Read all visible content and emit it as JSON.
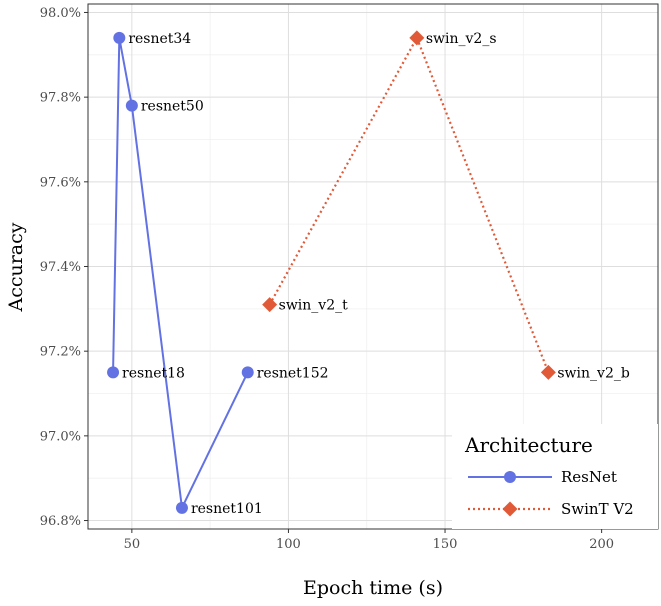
{
  "chart_data": {
    "type": "line",
    "title": "",
    "xlabel": "Epoch time (s)",
    "ylabel": "Accuracy",
    "xlim": [
      36,
      218
    ],
    "ylim": [
      96.78,
      98.02
    ],
    "x_ticks": [
      50,
      100,
      150,
      200
    ],
    "x_tick_labels": [
      "50",
      "100",
      "150",
      "200"
    ],
    "y_ticks": [
      96.8,
      97.0,
      97.2,
      97.4,
      97.6,
      97.8,
      98.0
    ],
    "y_tick_labels": [
      "96.8%",
      "97.0%",
      "97.2%",
      "97.4%",
      "97.6%",
      "97.8%",
      "98.0%"
    ],
    "grid": true,
    "legend": {
      "title": "Architecture",
      "position": "bottom-right"
    },
    "series": [
      {
        "name": "ResNet",
        "color": "#6272e3",
        "line_style": "solid",
        "marker": "circle",
        "points": [
          {
            "label": "resnet18",
            "x": 44,
            "y": 97.15
          },
          {
            "label": "resnet34",
            "x": 46,
            "y": 97.94
          },
          {
            "label": "resnet50",
            "x": 50,
            "y": 97.78
          },
          {
            "label": "resnet101",
            "x": 66,
            "y": 96.83
          },
          {
            "label": "resnet152",
            "x": 87,
            "y": 97.15
          }
        ]
      },
      {
        "name": "SwinT V2",
        "color": "#e15a38",
        "line_style": "dotted",
        "marker": "diamond",
        "points": [
          {
            "label": "swin_v2_t",
            "x": 94,
            "y": 97.31
          },
          {
            "label": "swin_v2_s",
            "x": 141,
            "y": 97.94
          },
          {
            "label": "swin_v2_b",
            "x": 183,
            "y": 97.15
          }
        ]
      }
    ]
  }
}
